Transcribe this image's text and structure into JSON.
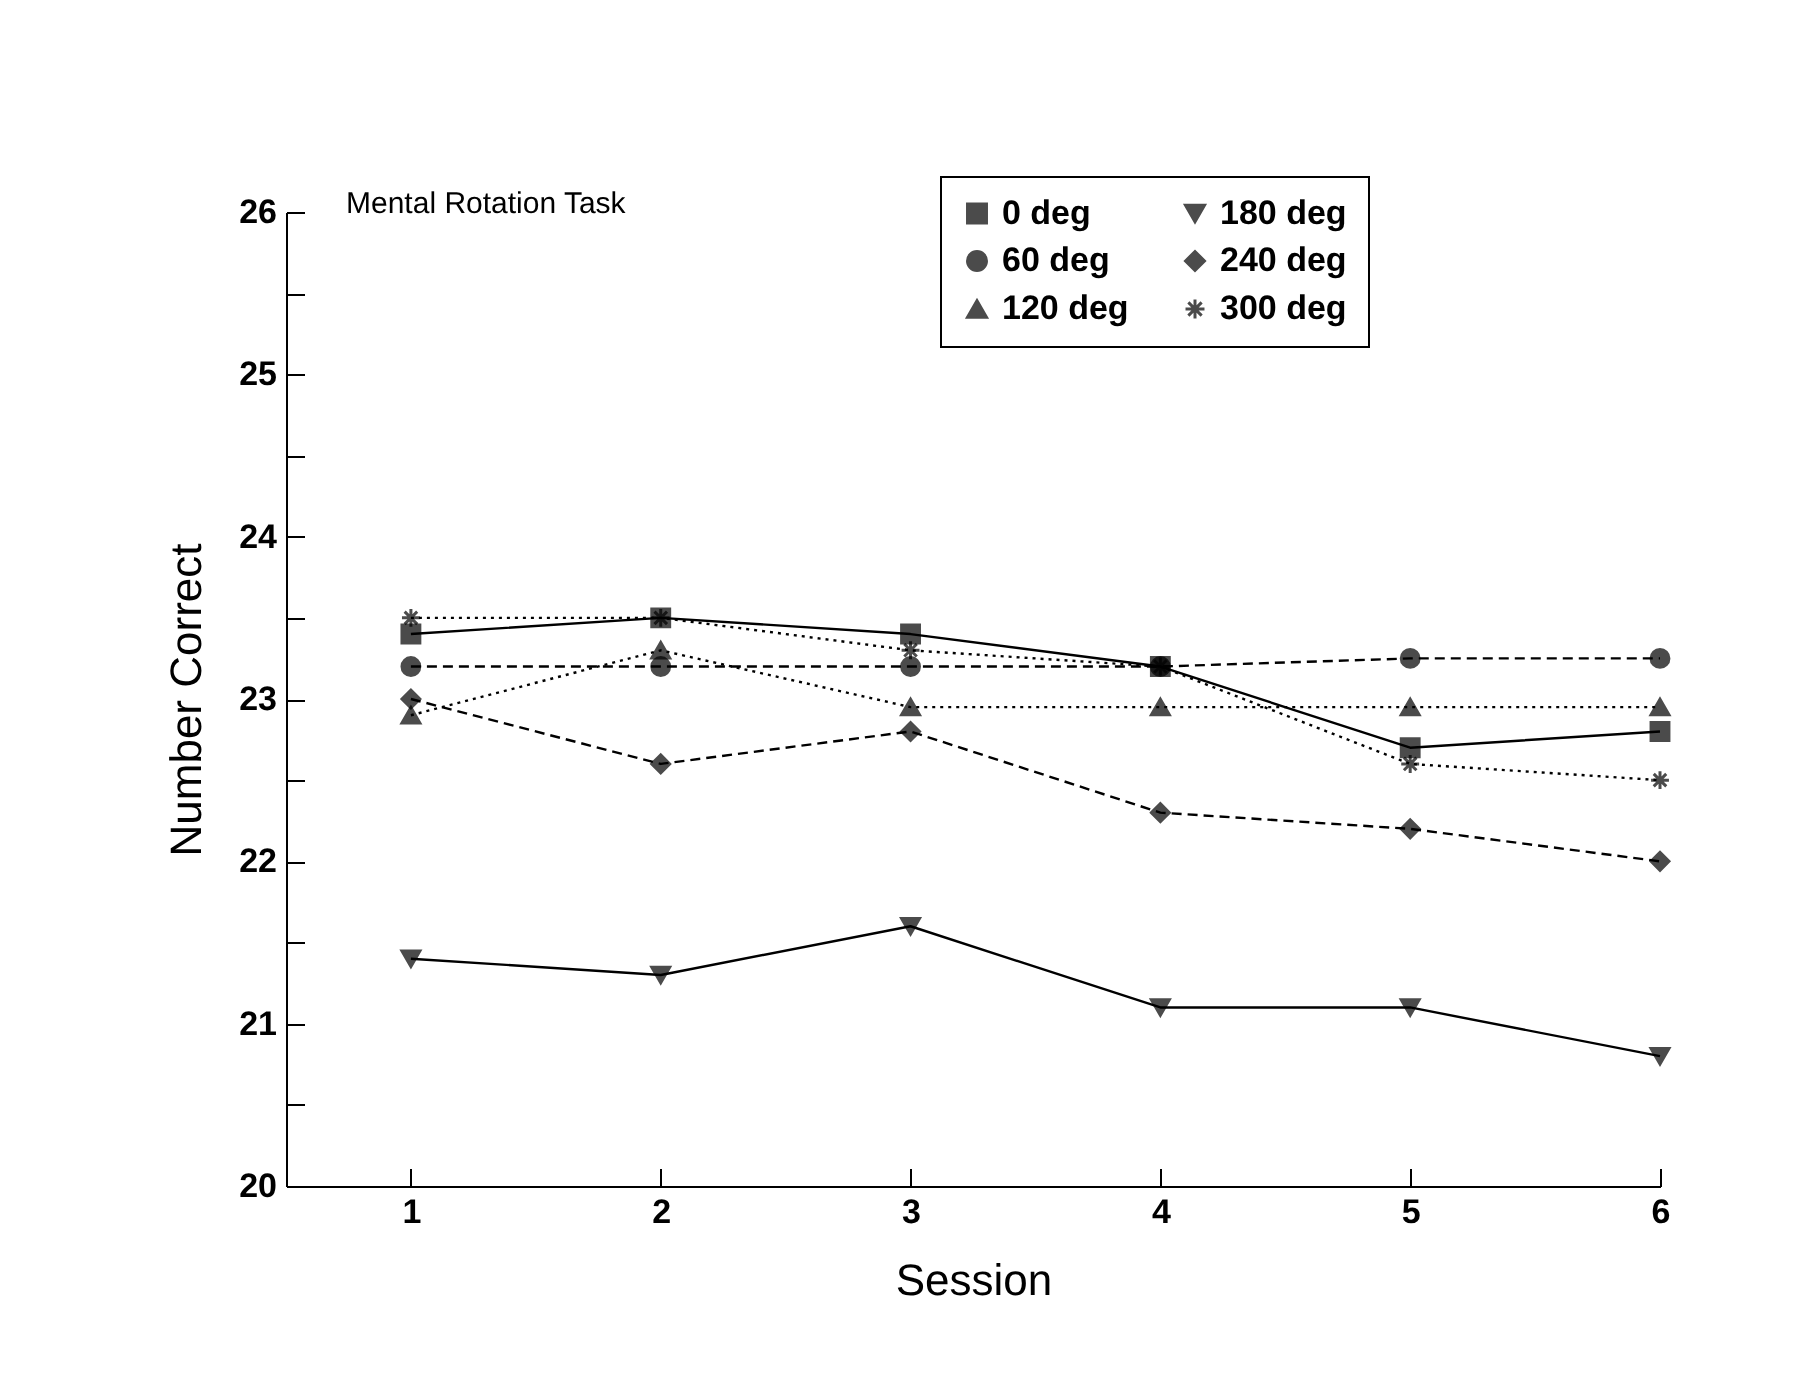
{
  "chart_data": {
    "type": "line",
    "title": "Mental Rotation Task",
    "xlabel": "Session",
    "ylabel": "Number Correct",
    "x": [
      1,
      2,
      3,
      4,
      5,
      6
    ],
    "xlim": [
      0.5,
      6
    ],
    "xticks": [
      1,
      2,
      3,
      4,
      5,
      6
    ],
    "ylim": [
      20,
      26
    ],
    "yticks": [
      20,
      {
        "value": 20.5,
        "label": null
      },
      21,
      {
        "value": 21.5,
        "label": null
      },
      22,
      {
        "value": 22.5,
        "label": null
      },
      23,
      {
        "value": 23.5,
        "label": null
      },
      24,
      {
        "value": 24.5,
        "label": null
      },
      25,
      {
        "value": 25.5,
        "label": null
      },
      26
    ],
    "legend": "top right",
    "series": [
      {
        "name": "0 deg",
        "color": "#000000",
        "marker": "square",
        "line_style": "solid",
        "values": [
          23.4,
          23.5,
          23.4,
          23.2,
          22.7,
          22.8
        ]
      },
      {
        "name": "60 deg",
        "color": "#000000",
        "marker": "circle",
        "line_style": "dashed",
        "values": [
          23.2,
          23.2,
          23.2,
          23.2,
          23.25,
          23.25
        ]
      },
      {
        "name": "120 deg",
        "color": "#000000",
        "marker": "triangle",
        "line_style": "dotted",
        "values": [
          22.9,
          23.3,
          22.95,
          22.95,
          22.95,
          22.95
        ]
      },
      {
        "name": "180 deg",
        "color": "#000000",
        "marker": "triangle-down",
        "line_style": "solid",
        "values": [
          21.4,
          21.3,
          21.6,
          21.1,
          21.1,
          20.8
        ]
      },
      {
        "name": "240 deg",
        "color": "#000000",
        "marker": "diamond",
        "line_style": "dashed",
        "values": [
          23.0,
          22.6,
          22.8,
          22.3,
          22.2,
          22.0
        ]
      },
      {
        "name": "300 deg",
        "color": "#000000",
        "marker": "cross",
        "line_style": "dotted",
        "values": [
          23.5,
          23.5,
          23.3,
          23.2,
          22.6,
          22.5
        ]
      }
    ]
  }
}
